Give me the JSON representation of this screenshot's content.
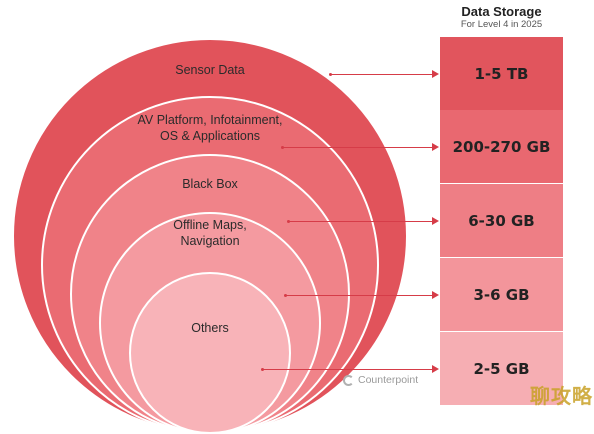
{
  "header": {
    "title": "Data Storage",
    "subtitle": "For Level 4 in 2025"
  },
  "layers": [
    {
      "label": "Sensor Data",
      "storage": "1-5 TB",
      "color": "#e1535b",
      "box_color": "#e1555d"
    },
    {
      "label": "AV Platform, Infotainment,\nOS & Applications",
      "storage": "200-270 GB",
      "color": "#ea6b72",
      "box_color": "#e96870"
    },
    {
      "label": "Black Box",
      "storage": "6-30 GB",
      "color": "#f08389",
      "box_color": "#ee7e85"
    },
    {
      "label": "Offline Maps,\nNavigation",
      "storage": "3-6 GB",
      "color": "#f49aa0",
      "box_color": "#f3959b"
    },
    {
      "label": "Others",
      "storage": "2-5 GB",
      "color": "#f8b3b8",
      "box_color": "#f6aeb3"
    }
  ],
  "logo": {
    "text": "Counterpoint",
    "icon": "counterpoint-logo-icon"
  },
  "watermark": {
    "text": "聊攻略"
  },
  "colors": {
    "connector": "#d63c48"
  }
}
